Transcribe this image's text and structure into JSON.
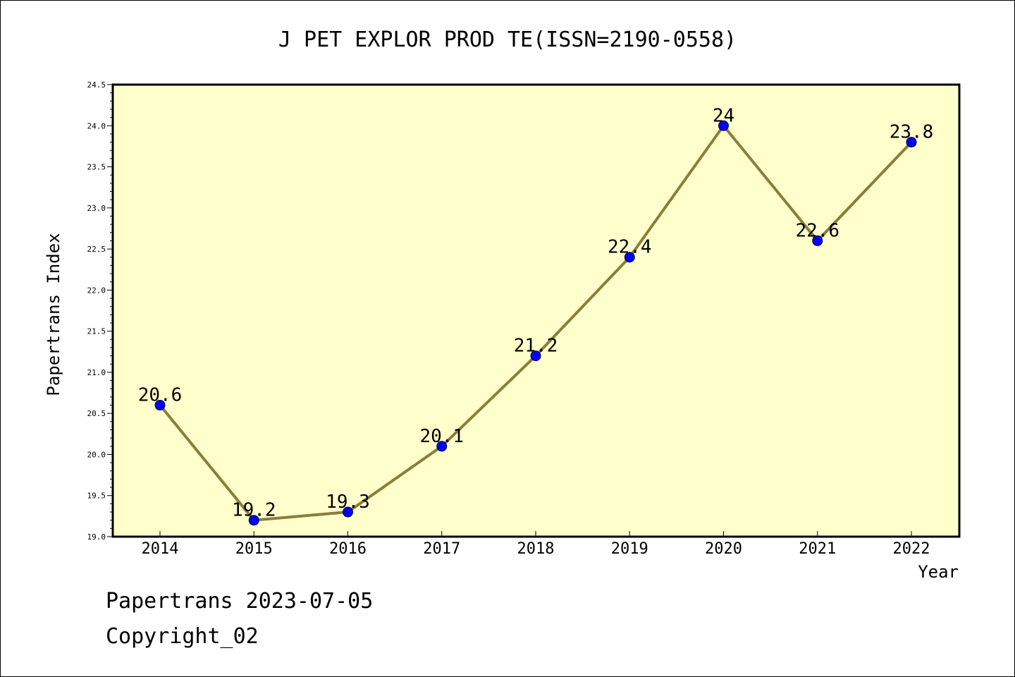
{
  "chart_data": {
    "type": "line",
    "title": "J PET EXPLOR PROD TE(ISSN=2190-0558)",
    "xlabel": "Year",
    "ylabel": "Papertrans Index",
    "categories": [
      "2014",
      "2015",
      "2016",
      "2017",
      "2018",
      "2019",
      "2020",
      "2021",
      "2022"
    ],
    "values": [
      20.6,
      19.2,
      19.3,
      20.1,
      21.2,
      22.4,
      24,
      22.6,
      23.8
    ],
    "data_labels": [
      "20.6",
      "19.2",
      "19.3",
      "20.1",
      "21.2",
      "22.4",
      "24",
      "22.6",
      "23.8"
    ],
    "ylim": [
      19.0,
      24.5
    ],
    "yticks": [
      "19.0",
      "19.5",
      "20.0",
      "20.5",
      "21.0",
      "21.5",
      "22.0",
      "22.5",
      "23.0",
      "23.5",
      "24.0",
      "24.5"
    ],
    "grid": false,
    "colors": {
      "plot_background": "#ffffcc",
      "line": "#8b7d3a",
      "marker": "#0000ff"
    }
  },
  "footer": {
    "line1": "Papertrans 2023-07-05",
    "line2": "Copyright_02"
  }
}
